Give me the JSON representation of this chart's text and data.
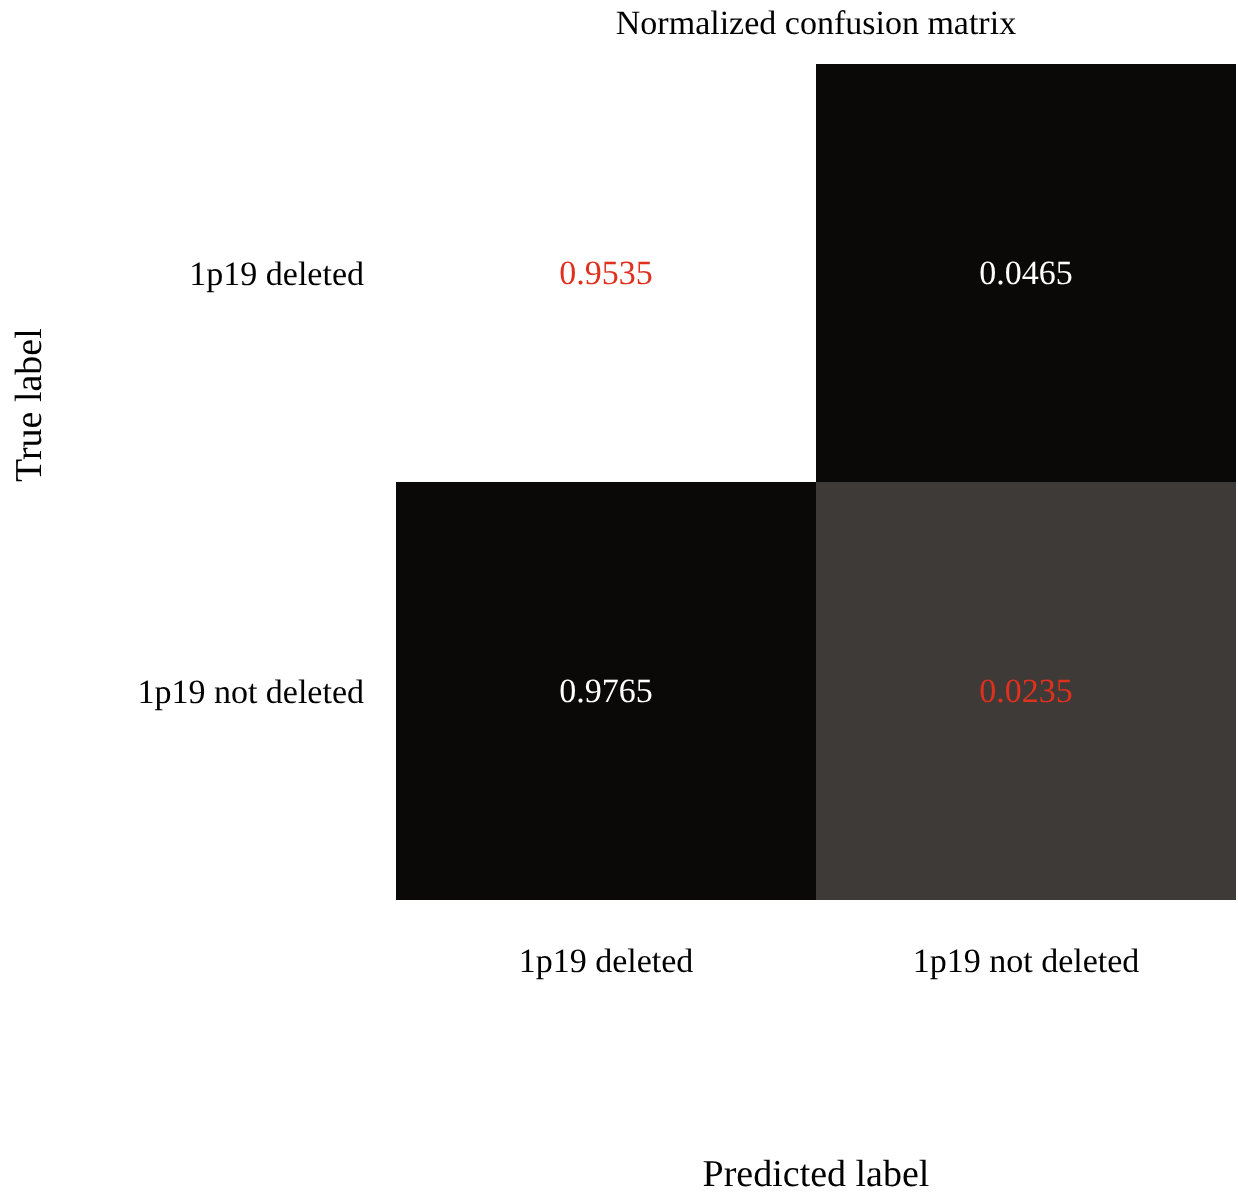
{
  "chart_data": {
    "type": "heatmap",
    "title": "Normalized confusion matrix",
    "xlabel": "Predicted label",
    "ylabel": "True label",
    "categories": [
      "1p19 deleted",
      "1p19 not deleted"
    ],
    "y_categories": [
      "1p19 deleted",
      "1p19 not deleted"
    ],
    "cells": [
      [
        0.9535,
        0.0465
      ],
      [
        0.9765,
        0.0235
      ]
    ],
    "colors": [
      [
        "#ffffff",
        "#0a0908"
      ],
      [
        "#0a0908",
        "#3e3a37"
      ]
    ],
    "data_labels": true
  }
}
